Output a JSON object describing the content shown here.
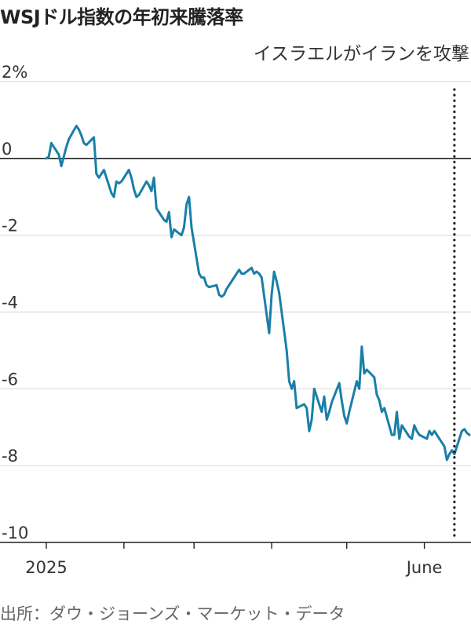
{
  "title": "WSJドル指数の年初来騰落率",
  "source": "出所：ダウ・ジョーンズ・マーケット・データ",
  "colors": {
    "line": "#1a7fa8",
    "grid": "#dddddd",
    "zero": "#222222",
    "text": "#333333"
  },
  "chart_data": {
    "type": "line",
    "title": "WSJドル指数の年初来騰落率",
    "xlabel": "",
    "ylabel": "",
    "ylim": [
      -10,
      2
    ],
    "y_ticks": [
      {
        "value": 2,
        "label": "2%"
      },
      {
        "value": 0,
        "label": "0"
      },
      {
        "value": -2,
        "label": "-2"
      },
      {
        "value": -4,
        "label": "-4"
      },
      {
        "value": -6,
        "label": "-6"
      },
      {
        "value": -8,
        "label": "-8"
      },
      {
        "value": -10,
        "label": "-10"
      }
    ],
    "x_tick_labels": [
      {
        "date": "2025-01-01",
        "label": "2025"
      },
      {
        "date": "2025-06-01",
        "label": "June"
      }
    ],
    "grid": true,
    "annotation": {
      "date": "2025-06-13",
      "label": "イスラエルがイランを攻撃"
    },
    "series": [
      {
        "points": [
          [
            "2025-01-01",
            0.0
          ],
          [
            "2025-01-02",
            0.05
          ],
          [
            "2025-01-03",
            0.4
          ],
          [
            "2025-01-06",
            0.1
          ],
          [
            "2025-01-07",
            -0.2
          ],
          [
            "2025-01-08",
            0.05
          ],
          [
            "2025-01-09",
            0.3
          ],
          [
            "2025-01-10",
            0.5
          ],
          [
            "2025-01-13",
            0.85
          ],
          [
            "2025-01-14",
            0.75
          ],
          [
            "2025-01-15",
            0.6
          ],
          [
            "2025-01-16",
            0.4
          ],
          [
            "2025-01-17",
            0.35
          ],
          [
            "2025-01-20",
            0.55
          ],
          [
            "2025-01-21",
            -0.4
          ],
          [
            "2025-01-22",
            -0.5
          ],
          [
            "2025-01-23",
            -0.4
          ],
          [
            "2025-01-24",
            -0.3
          ],
          [
            "2025-01-27",
            -0.9
          ],
          [
            "2025-01-28",
            -1.0
          ],
          [
            "2025-01-29",
            -0.6
          ],
          [
            "2025-01-30",
            -0.65
          ],
          [
            "2025-01-31",
            -0.6
          ],
          [
            "2025-02-03",
            -0.3
          ],
          [
            "2025-02-04",
            -0.5
          ],
          [
            "2025-02-05",
            -0.8
          ],
          [
            "2025-02-06",
            -1.0
          ],
          [
            "2025-02-07",
            -0.95
          ],
          [
            "2025-02-10",
            -0.6
          ],
          [
            "2025-02-11",
            -0.7
          ],
          [
            "2025-02-12",
            -0.85
          ],
          [
            "2025-02-13",
            -0.5
          ],
          [
            "2025-02-14",
            -1.3
          ],
          [
            "2025-02-17",
            -1.6
          ],
          [
            "2025-02-18",
            -1.65
          ],
          [
            "2025-02-19",
            -1.4
          ],
          [
            "2025-02-20",
            -2.05
          ],
          [
            "2025-02-21",
            -1.85
          ],
          [
            "2025-02-24",
            -2.0
          ],
          [
            "2025-02-25",
            -1.8
          ],
          [
            "2025-02-26",
            -1.2
          ],
          [
            "2025-02-27",
            -1.0
          ],
          [
            "2025-02-28",
            -1.8
          ],
          [
            "2025-03-03",
            -3.0
          ],
          [
            "2025-03-04",
            -3.1
          ],
          [
            "2025-03-05",
            -3.1
          ],
          [
            "2025-03-06",
            -3.3
          ],
          [
            "2025-03-07",
            -3.35
          ],
          [
            "2025-03-10",
            -3.3
          ],
          [
            "2025-03-11",
            -3.55
          ],
          [
            "2025-03-12",
            -3.6
          ],
          [
            "2025-03-13",
            -3.55
          ],
          [
            "2025-03-14",
            -3.4
          ],
          [
            "2025-03-17",
            -3.1
          ],
          [
            "2025-03-18",
            -3.0
          ],
          [
            "2025-03-19",
            -2.9
          ],
          [
            "2025-03-20",
            -3.0
          ],
          [
            "2025-03-21",
            -3.0
          ],
          [
            "2025-03-24",
            -2.85
          ],
          [
            "2025-03-25",
            -3.0
          ],
          [
            "2025-03-26",
            -2.95
          ],
          [
            "2025-03-27",
            -3.0
          ],
          [
            "2025-03-28",
            -3.1
          ],
          [
            "2025-03-31",
            -4.55
          ],
          [
            "2025-04-01",
            -3.55
          ],
          [
            "2025-04-02",
            -2.95
          ],
          [
            "2025-04-03",
            -3.2
          ],
          [
            "2025-04-04",
            -3.5
          ],
          [
            "2025-04-07",
            -5.0
          ],
          [
            "2025-04-08",
            -5.8
          ],
          [
            "2025-04-09",
            -6.0
          ],
          [
            "2025-04-10",
            -5.8
          ],
          [
            "2025-04-11",
            -6.5
          ],
          [
            "2025-04-14",
            -6.4
          ],
          [
            "2025-04-15",
            -6.5
          ],
          [
            "2025-04-16",
            -7.1
          ],
          [
            "2025-04-17",
            -6.8
          ],
          [
            "2025-04-18",
            -6.0
          ],
          [
            "2025-04-21",
            -6.6
          ],
          [
            "2025-04-22",
            -6.2
          ],
          [
            "2025-04-23",
            -6.8
          ],
          [
            "2025-04-24",
            -6.6
          ],
          [
            "2025-04-25",
            -6.35
          ],
          [
            "2025-04-28",
            -5.85
          ],
          [
            "2025-04-29",
            -6.3
          ],
          [
            "2025-04-30",
            -6.7
          ],
          [
            "2025-05-01",
            -6.9
          ],
          [
            "2025-05-02",
            -6.6
          ],
          [
            "2025-05-05",
            -5.8
          ],
          [
            "2025-05-06",
            -6.0
          ],
          [
            "2025-05-07",
            -4.9
          ],
          [
            "2025-05-08",
            -5.6
          ],
          [
            "2025-05-09",
            -5.5
          ],
          [
            "2025-05-12",
            -5.7
          ],
          [
            "2025-05-13",
            -6.15
          ],
          [
            "2025-05-14",
            -6.3
          ],
          [
            "2025-05-15",
            -6.6
          ],
          [
            "2025-05-16",
            -6.5
          ],
          [
            "2025-05-19",
            -7.2
          ],
          [
            "2025-05-20",
            -7.2
          ],
          [
            "2025-05-21",
            -6.6
          ],
          [
            "2025-05-22",
            -7.3
          ],
          [
            "2025-05-23",
            -6.95
          ],
          [
            "2025-05-26",
            -7.25
          ],
          [
            "2025-05-27",
            -7.3
          ],
          [
            "2025-05-28",
            -6.95
          ],
          [
            "2025-05-29",
            -7.1
          ],
          [
            "2025-05-30",
            -7.2
          ],
          [
            "2025-06-02",
            -7.3
          ],
          [
            "2025-06-03",
            -7.1
          ],
          [
            "2025-06-04",
            -7.2
          ],
          [
            "2025-06-05",
            -7.1
          ],
          [
            "2025-06-06",
            -7.2
          ],
          [
            "2025-06-09",
            -7.5
          ],
          [
            "2025-06-10",
            -7.85
          ],
          [
            "2025-06-11",
            -7.7
          ],
          [
            "2025-06-12",
            -7.6
          ],
          [
            "2025-06-13",
            -7.7
          ],
          [
            "2025-06-16",
            -7.1
          ],
          [
            "2025-06-17",
            -7.05
          ],
          [
            "2025-06-18",
            -7.15
          ],
          [
            "2025-06-19",
            -7.2
          ]
        ]
      }
    ]
  }
}
